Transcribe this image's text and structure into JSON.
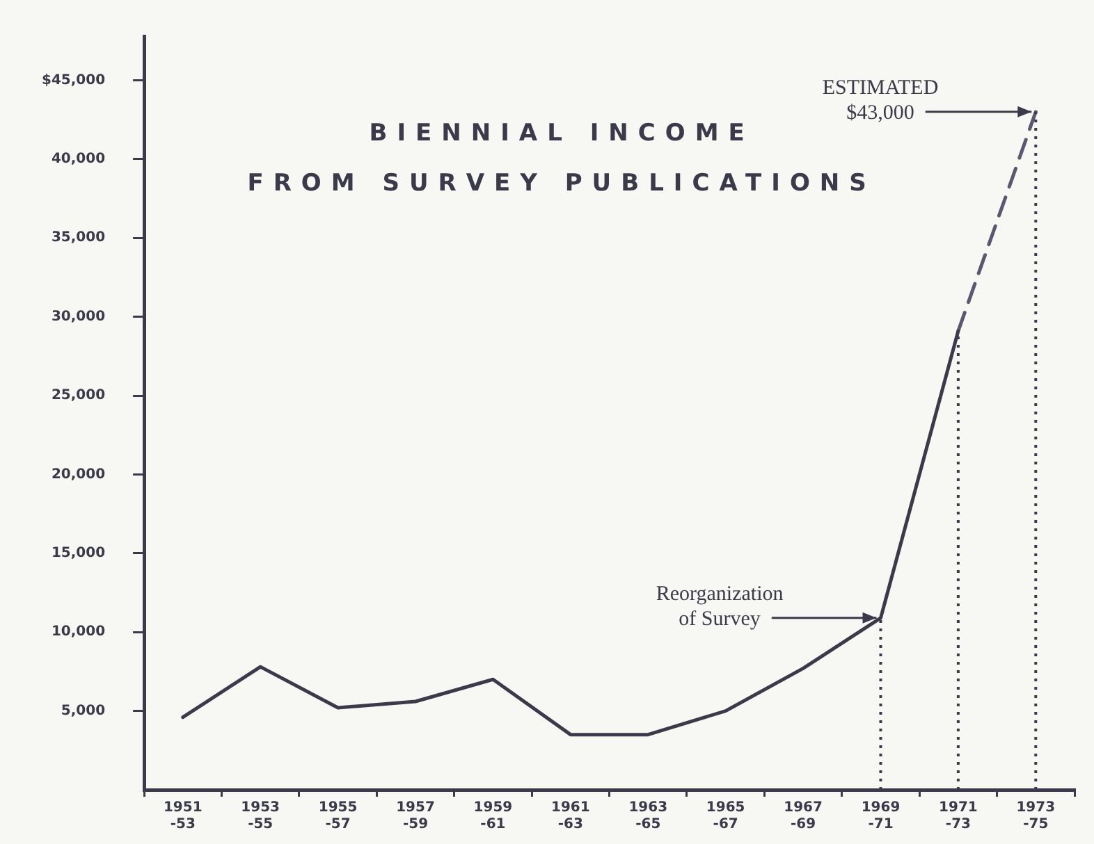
{
  "chart_data": {
    "type": "line",
    "title": "BIENNIAL INCOME\nFROM SURVEY PUBLICATIONS",
    "categories": [
      "1951 -53",
      "1953 -55",
      "1955 -57",
      "1957 -59",
      "1959 -61",
      "1961 -63",
      "1963 -65",
      "1965 -67",
      "1967 -69",
      "1969 -71",
      "1971 -73",
      "1973 -75"
    ],
    "series": [
      {
        "color": "#3b3a4a",
        "line_style": "solid",
        "values": [
          4600,
          7800,
          5200,
          5600,
          7000,
          3500,
          3500,
          5000,
          7700,
          10900,
          29100,
          null
        ]
      },
      {
        "color": "#5a5870",
        "line_style": "dashed",
        "values": [
          null,
          null,
          null,
          null,
          null,
          null,
          null,
          null,
          null,
          null,
          29100,
          43000
        ]
      }
    ],
    "ylim": [
      0,
      47800
    ],
    "yticks": [
      {
        "value": 5000,
        "label": "5,000"
      },
      {
        "value": 10000,
        "label": "10,000"
      },
      {
        "value": 15000,
        "label": "15,000"
      },
      {
        "value": 20000,
        "label": "20,000"
      },
      {
        "value": 25000,
        "label": "25,000"
      },
      {
        "value": 30000,
        "label": "30,000"
      },
      {
        "value": 35000,
        "label": "35,000"
      },
      {
        "value": 40000,
        "label": "40,000"
      },
      {
        "value": 45000,
        "label": "$45,000"
      }
    ],
    "ref_lines": [
      {
        "axis": "x",
        "value": "1969 -71",
        "line_style": "dotted"
      },
      {
        "axis": "x",
        "value": "1971 -73",
        "line_style": "dotted"
      },
      {
        "axis": "x",
        "value": "1973 -75",
        "line_style": "dotted"
      }
    ],
    "annotations": [
      {
        "text": "ESTIMATED\n$43,000",
        "x": "1973 -75",
        "y": 43000
      },
      {
        "text": "Reorganization\nof Survey",
        "x": "1969 -71",
        "y": 10900
      }
    ],
    "grid": false,
    "legend": false,
    "marker": "none"
  }
}
